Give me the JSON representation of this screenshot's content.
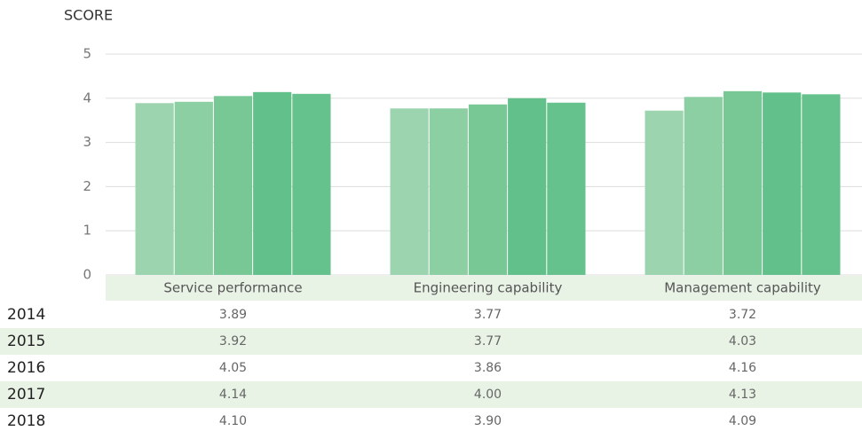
{
  "chart_data": {
    "type": "bar",
    "y_label": "SCORE",
    "categories": [
      "Service performance",
      "Engineering capability",
      "Management capability"
    ],
    "series": [
      {
        "name": "2014",
        "color": "#9dd4b0",
        "values": [
          3.89,
          3.77,
          3.72
        ],
        "value_labels": [
          "3.89",
          "3.77",
          "3.72"
        ]
      },
      {
        "name": "2015",
        "color": "#8ccfa3",
        "values": [
          3.92,
          3.77,
          4.03
        ],
        "value_labels": [
          "3.92",
          "3.77",
          "4.03"
        ]
      },
      {
        "name": "2016",
        "color": "#77c895",
        "values": [
          4.05,
          3.86,
          4.16
        ],
        "value_labels": [
          "4.05",
          "3.86",
          "4.16"
        ]
      },
      {
        "name": "2017",
        "color": "#62c08a",
        "values": [
          4.14,
          4.0,
          4.13
        ],
        "value_labels": [
          "4.14",
          "4.00",
          "4.13"
        ]
      },
      {
        "name": "2018",
        "color": "#66c28c",
        "values": [
          4.1,
          3.9,
          4.09
        ],
        "value_labels": [
          "4.10",
          "3.90",
          "4.09"
        ]
      }
    ],
    "ylim": [
      0,
      5
    ],
    "yticks": [
      0,
      1,
      2,
      3,
      4,
      5
    ],
    "grid": true
  }
}
